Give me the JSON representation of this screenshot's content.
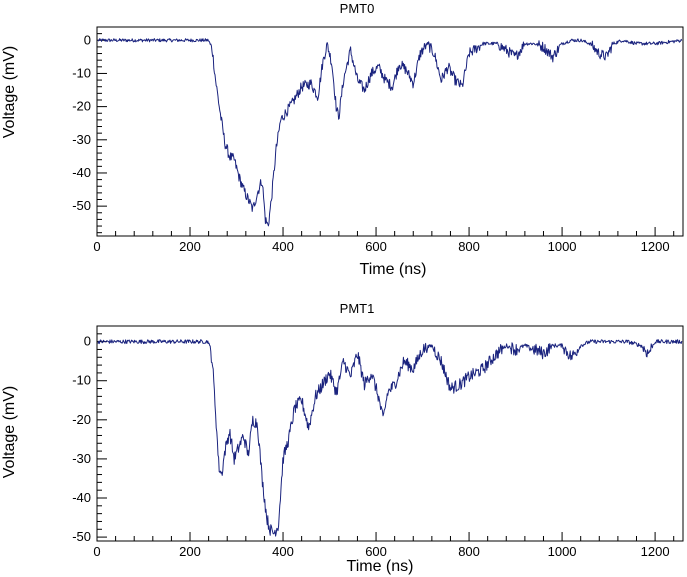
{
  "colors": {
    "trace": "#1a237e",
    "axis": "#000000",
    "background": "#ffffff"
  },
  "chart_data": [
    {
      "type": "line",
      "title": "PMT0",
      "xlabel": "Time (ns)",
      "ylabel": "Voltage (mV)",
      "xlim": [
        0,
        1260
      ],
      "ylim": [
        -59,
        4
      ],
      "grid": false,
      "x_ticks": [
        0,
        200,
        400,
        600,
        800,
        1000,
        1200
      ],
      "y_ticks": [
        0,
        -10,
        -20,
        -30,
        -40,
        -50
      ],
      "series": [
        {
          "x": [
            0,
            50,
            100,
            150,
            200,
            240,
            248,
            255,
            265,
            275,
            285,
            295,
            305,
            315,
            325,
            335,
            345,
            355,
            362,
            368,
            375,
            385,
            395,
            405,
            420,
            440,
            460,
            475,
            485,
            495,
            505,
            515,
            520,
            530,
            545,
            560,
            575,
            590,
            605,
            620,
            635,
            650,
            665,
            680,
            695,
            710,
            725,
            740,
            755,
            770,
            785,
            800,
            830,
            860,
            880,
            900,
            920,
            940,
            960,
            980,
            1000,
            1020,
            1040,
            1060,
            1080,
            1095,
            1110,
            1130,
            1160,
            1200,
            1260
          ],
          "values": [
            0,
            0,
            0,
            0,
            0,
            0,
            -3,
            -12,
            -22,
            -31,
            -35,
            -36,
            -41,
            -45,
            -48,
            -51,
            -46,
            -42,
            -54,
            -56,
            -48,
            -33,
            -24,
            -22,
            -19,
            -14,
            -13,
            -17,
            -7,
            -1,
            -7,
            -21,
            -23,
            -12,
            -3,
            -12,
            -15,
            -10,
            -8,
            -12,
            -14,
            -7,
            -9,
            -13,
            -4,
            -1,
            -4,
            -12,
            -8,
            -12,
            -14,
            -4,
            -1,
            -1,
            -3,
            -5,
            -1,
            -1,
            -2,
            -5,
            -1,
            0,
            0,
            -1,
            -4,
            -5,
            -1,
            0,
            -1,
            -1,
            0
          ]
        }
      ]
    },
    {
      "type": "line",
      "title": "PMT1",
      "xlabel": "Time (ns)",
      "ylabel": "Voltage (mV)",
      "xlim": [
        0,
        1260
      ],
      "ylim": [
        -51,
        4
      ],
      "grid": false,
      "x_ticks": [
        0,
        200,
        400,
        600,
        800,
        1000,
        1200
      ],
      "y_ticks": [
        0,
        -10,
        -20,
        -30,
        -40,
        -50
      ],
      "series": [
        {
          "x": [
            0,
            50,
            100,
            150,
            200,
            240,
            248,
            255,
            262,
            268,
            275,
            285,
            295,
            305,
            315,
            325,
            335,
            345,
            355,
            365,
            372,
            380,
            390,
            400,
            412,
            425,
            440,
            455,
            470,
            485,
            500,
            515,
            530,
            545,
            560,
            575,
            590,
            605,
            615,
            625,
            640,
            660,
            680,
            700,
            720,
            740,
            760,
            780,
            800,
            830,
            860,
            880,
            900,
            920,
            940,
            960,
            980,
            1000,
            1020,
            1040,
            1060,
            1100,
            1140,
            1170,
            1185,
            1200,
            1260
          ],
          "values": [
            0,
            0,
            0,
            0,
            0,
            0,
            -5,
            -18,
            -32,
            -34,
            -28,
            -23,
            -30,
            -27,
            -24,
            -29,
            -20,
            -21,
            -35,
            -45,
            -48,
            -49,
            -47,
            -30,
            -25,
            -17,
            -15,
            -22,
            -14,
            -11,
            -8,
            -13,
            -5,
            -9,
            -3,
            -11,
            -8,
            -14,
            -20,
            -13,
            -11,
            -5,
            -7,
            -2,
            -1,
            -5,
            -12,
            -11,
            -9,
            -7,
            -3,
            -1,
            -2,
            -1,
            -2,
            -3,
            -1,
            -1,
            -4,
            -1,
            0,
            0,
            0,
            -1,
            -3,
            0,
            0
          ]
        }
      ]
    }
  ]
}
